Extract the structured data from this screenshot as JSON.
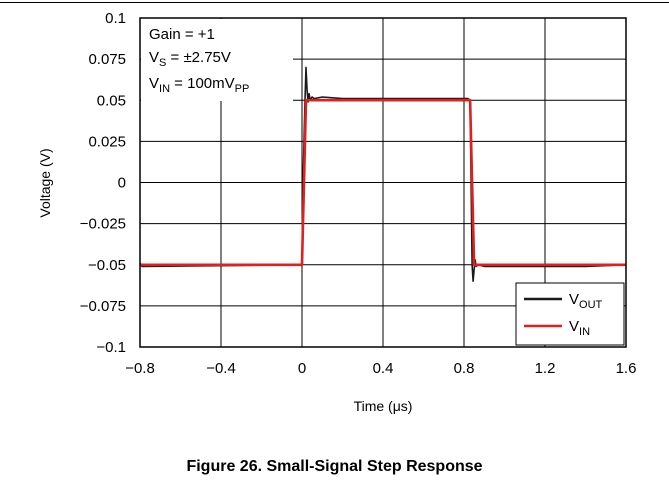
{
  "caption": "Figure 26. Small-Signal Step Response",
  "chart_data": {
    "type": "line",
    "xlabel": "Time (μs)",
    "ylabel": "Voltage (V)",
    "xlim": [
      -0.8,
      1.6
    ],
    "ylim": [
      -0.1,
      0.1
    ],
    "xticks": [
      -0.8,
      -0.4,
      0,
      0.4,
      0.8,
      1.2,
      1.6
    ],
    "xtick_labels": [
      "−0.8",
      "−0.4",
      "0",
      "0.4",
      "0.8",
      "1.2",
      "1.6"
    ],
    "yticks": [
      -0.1,
      -0.075,
      -0.05,
      -0.025,
      0,
      0.025,
      0.05,
      0.075,
      0.1
    ],
    "ytick_labels": [
      "−0.1",
      "−0.075",
      "−0.05",
      "−0.025",
      "0",
      "0.025",
      "0.05",
      "0.075",
      "0.1"
    ],
    "grid": true,
    "annotations": [
      {
        "main": "Gain = +1",
        "sub": ""
      },
      {
        "main": "V",
        "sub": "S",
        "rest": " = ±2.75V"
      },
      {
        "main": "V",
        "sub": "IN",
        "rest": " = 100mV",
        "sub2": "PP"
      }
    ],
    "legend": {
      "placement": "bottom-right",
      "entries": [
        {
          "main": "V",
          "sub": "OUT",
          "color": "#1a1a1a"
        },
        {
          "main": "V",
          "sub": "IN",
          "color": "#e02020"
        }
      ]
    },
    "series": [
      {
        "name": "VOUT",
        "color": "#1a1a1a",
        "x": [
          -0.8,
          -0.79,
          0,
          0.005,
          0.015,
          0.02,
          0.025,
          0.03,
          0.035,
          0.04,
          0.05,
          0.06,
          0.1,
          0.2,
          0.4,
          0.6,
          0.8,
          0.82,
          0.83,
          0.835,
          0.84,
          0.845,
          0.85,
          0.855,
          0.86,
          0.87,
          0.9,
          1.0,
          1.2,
          1.4,
          1.6
        ],
        "y": [
          -0.049,
          -0.051,
          -0.05,
          0.0,
          0.05,
          0.07,
          0.056,
          0.049,
          0.054,
          0.05,
          0.052,
          0.051,
          0.052,
          0.051,
          0.051,
          0.051,
          0.051,
          0.051,
          0.05,
          0.0,
          -0.05,
          -0.06,
          -0.053,
          -0.047,
          -0.051,
          -0.05,
          -0.051,
          -0.051,
          -0.051,
          -0.051,
          -0.05
        ]
      },
      {
        "name": "VIN",
        "color": "#e02020",
        "x": [
          -0.8,
          0,
          0.02,
          0.83,
          0.85,
          1.6
        ],
        "y": [
          -0.05,
          -0.05,
          0.05,
          0.05,
          -0.05,
          -0.05
        ]
      }
    ]
  }
}
